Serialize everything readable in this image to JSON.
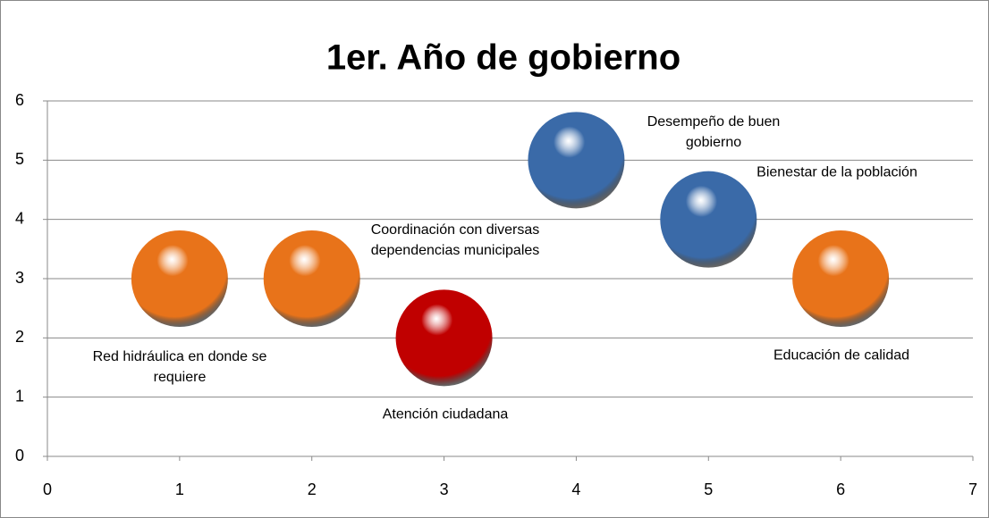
{
  "chart_data": {
    "type": "bubble",
    "title": "1er. Año de gobierno",
    "x": [
      1,
      2,
      3,
      4,
      5,
      6
    ],
    "values": [
      3,
      3,
      2,
      5,
      4,
      3
    ],
    "sizes": [
      1,
      1,
      1,
      1,
      1,
      1
    ],
    "labels": [
      "Red hidráulica en donde se requiere",
      "Coordinación con diversas dependencias municipales",
      "Atención ciudadana",
      "Desempeño de buen gobierno",
      "Bienestar de la población",
      "Educación de calidad"
    ],
    "colors": [
      "#e8731a",
      "#e8731a",
      "#c00000",
      "#3a6aa8",
      "#3a6aa8",
      "#e8731a"
    ],
    "xlim": [
      0,
      7
    ],
    "xticks": [
      0,
      1,
      2,
      3,
      4,
      5,
      6,
      7
    ],
    "ylim": [
      0,
      6
    ],
    "yticks": [
      0,
      1,
      2,
      3,
      4,
      5,
      6
    ],
    "grid": true
  }
}
